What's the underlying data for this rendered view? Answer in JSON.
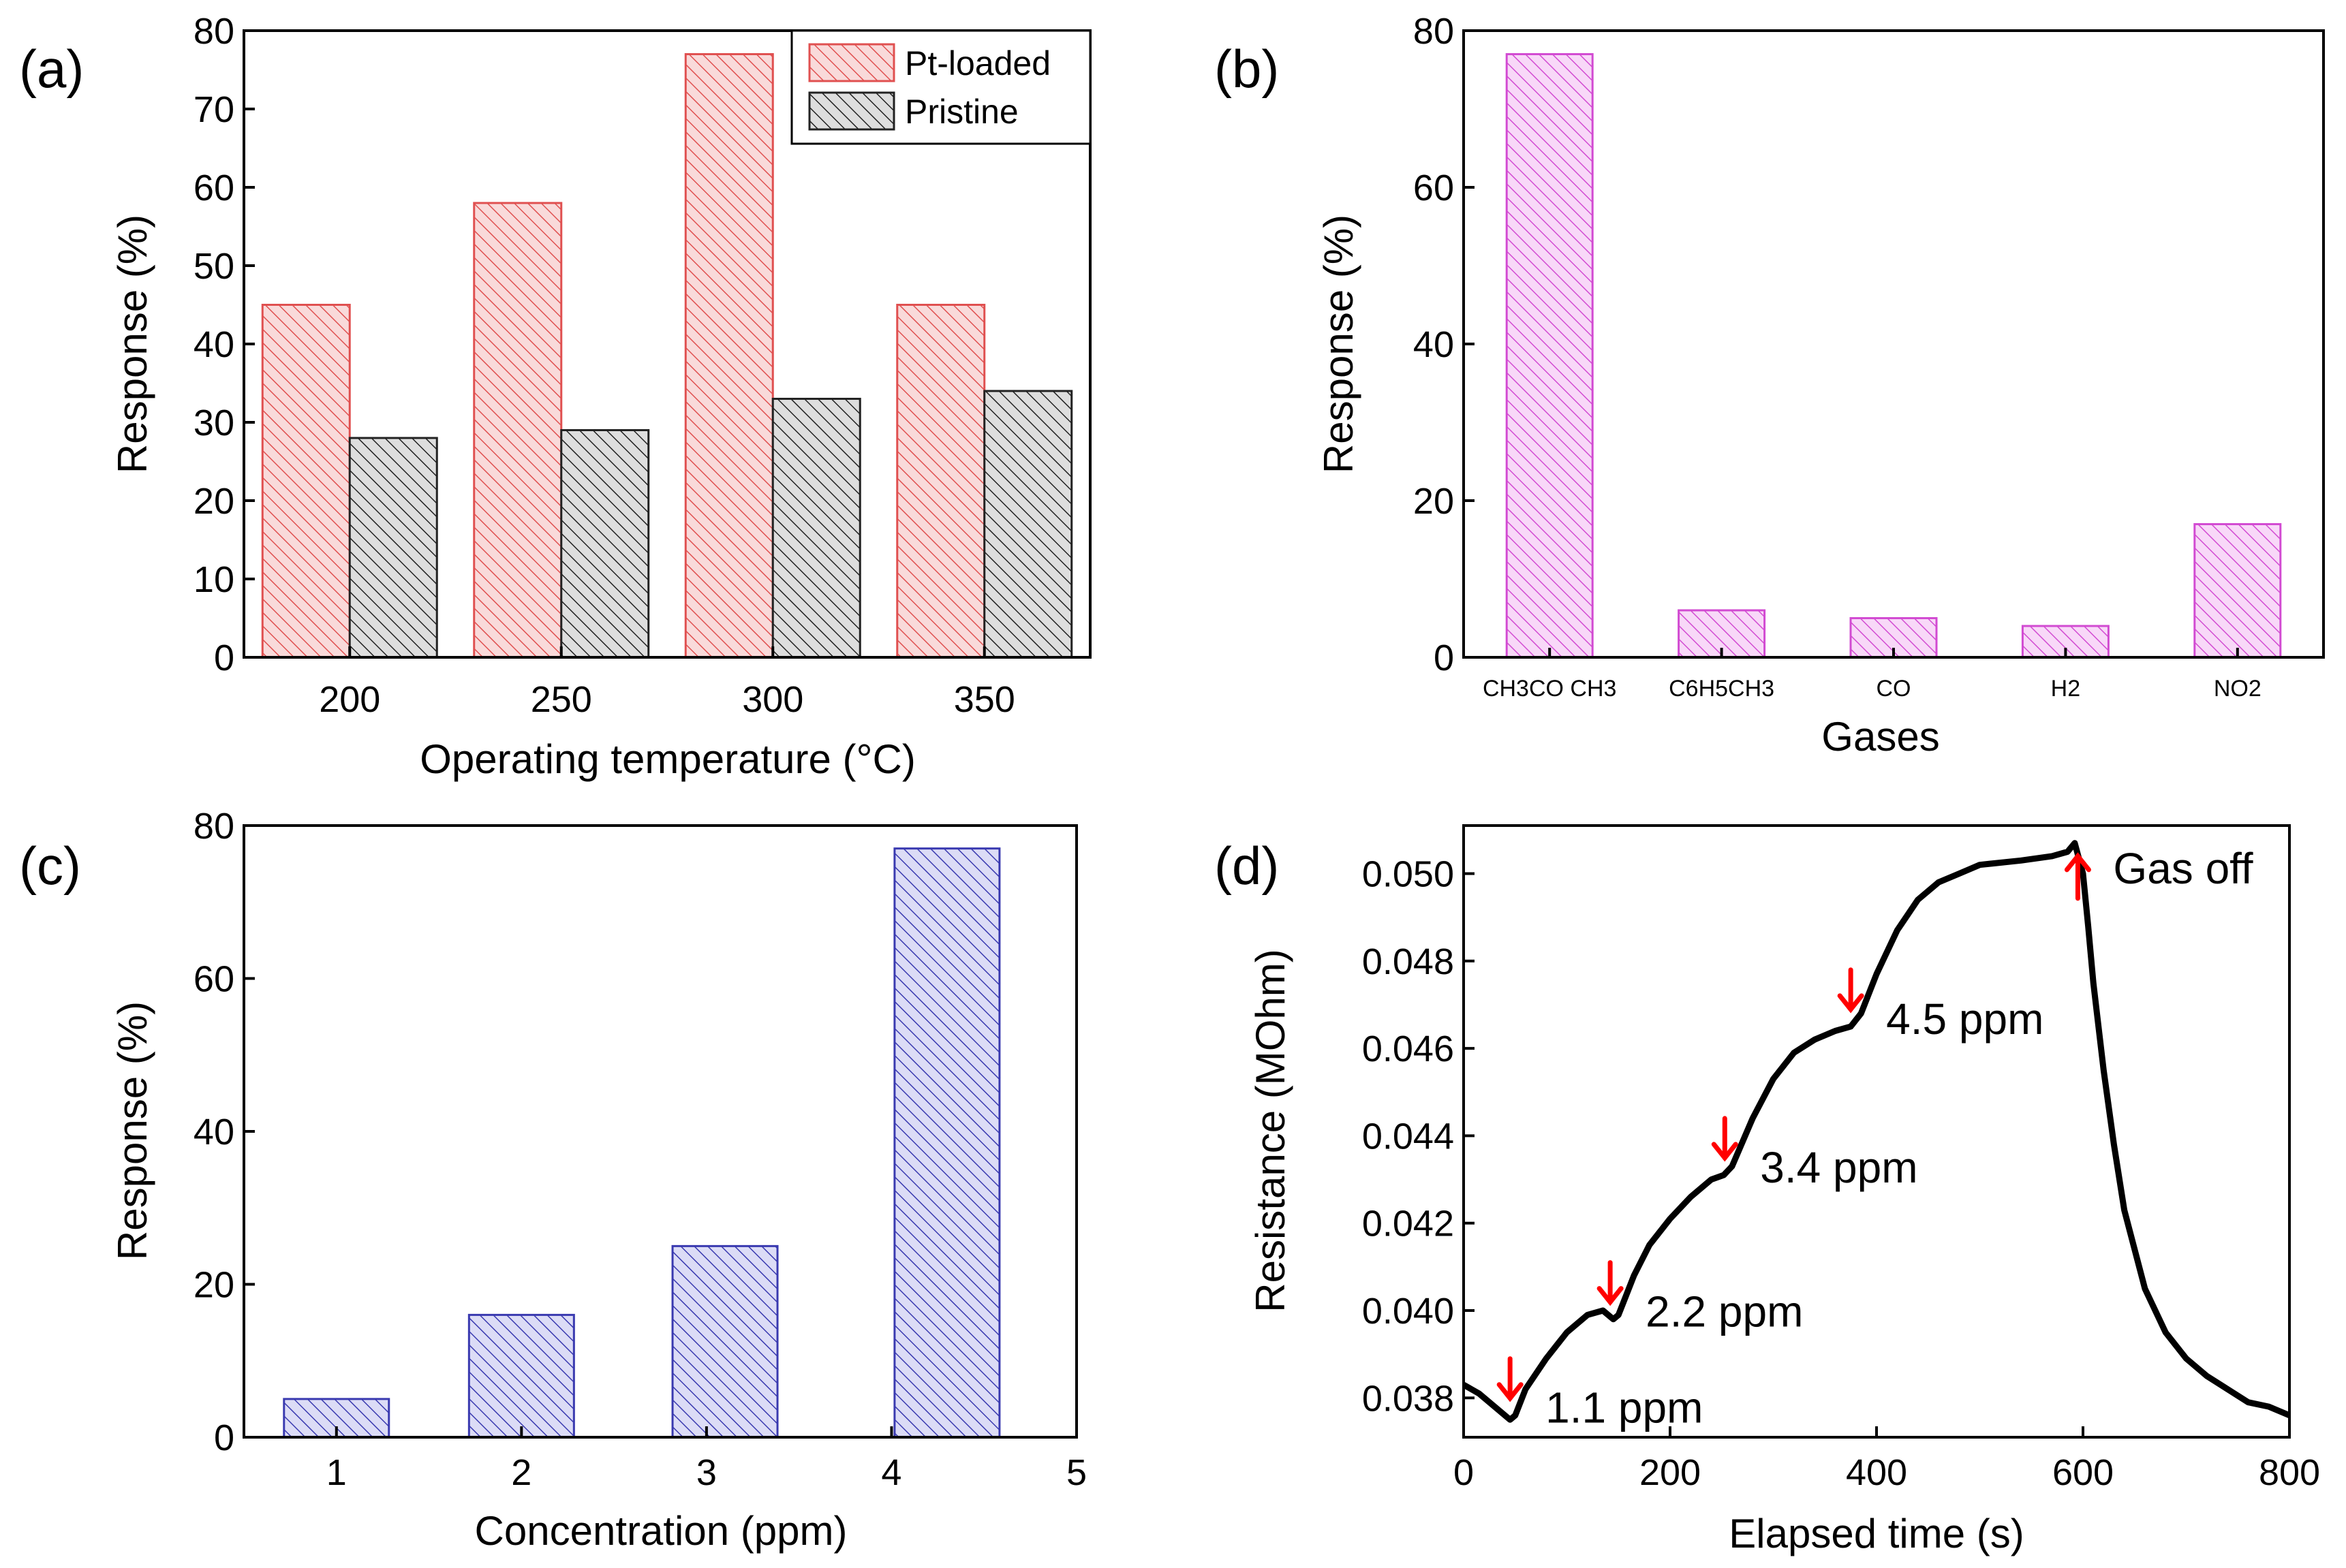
{
  "chart_data": [
    {
      "panel": "(a)",
      "type": "bar",
      "categories": [
        "200",
        "250",
        "300",
        "350"
      ],
      "series": [
        {
          "name": "Pt-loaded",
          "values": [
            45,
            58,
            77,
            45
          ],
          "color": "#e05050",
          "fill": "#f7c9c9"
        },
        {
          "name": "Pristine",
          "values": [
            28,
            29,
            33,
            34
          ],
          "color": "#222222",
          "fill": "#c8c8c8"
        }
      ],
      "xlabel": "Operating temperature (°C)",
      "ylabel": "Response (%)",
      "ylim": [
        0,
        80
      ],
      "yticks": [
        "0",
        "10",
        "20",
        "30",
        "40",
        "50",
        "60",
        "70",
        "80"
      ],
      "legend": "top-right",
      "grid": false
    },
    {
      "panel": "(b)",
      "type": "bar",
      "categories": [
        "CH3CO CH3",
        "C6H5CH3",
        "CO",
        "H2",
        "NO2"
      ],
      "values": [
        77,
        6,
        5,
        4,
        17
      ],
      "color": "#d24bd2",
      "fill": "#f5c6f5",
      "xlabel": "Gases",
      "ylabel": "Response (%)",
      "ylim": [
        0,
        80
      ],
      "yticks": [
        "0",
        "20",
        "40",
        "60",
        "80"
      ],
      "grid": false
    },
    {
      "panel": "(c)",
      "type": "bar",
      "x": [
        1,
        2,
        3.1,
        4.3
      ],
      "values": [
        5,
        16,
        25,
        77
      ],
      "color": "#3a3ab0",
      "fill": "#c7c7ef",
      "xlabel": "Concentration (ppm)",
      "ylabel": "Response (%)",
      "xlim": [
        0.5,
        5
      ],
      "xticks": [
        "1",
        "2",
        "3",
        "4",
        "5"
      ],
      "ylim": [
        0,
        80
      ],
      "yticks": [
        "0",
        "20",
        "40",
        "60",
        "80"
      ],
      "grid": false
    },
    {
      "panel": "(d)",
      "type": "line",
      "xlabel": "Elapsed time (s)",
      "ylabel": "Resistance (MOhm)",
      "xlim": [
        0,
        800
      ],
      "xticks": [
        "0",
        "200",
        "400",
        "600",
        "800"
      ],
      "ylim": [
        0.0371,
        0.0511
      ],
      "yticks": [
        "0.038",
        "0.040",
        "0.042",
        "0.044",
        "0.046",
        "0.048",
        "0.050"
      ],
      "series": [
        {
          "x": [
            0,
            15,
            30,
            45,
            50,
            60,
            80,
            100,
            120,
            135,
            145,
            150,
            165,
            180,
            200,
            220,
            240,
            252,
            260,
            280,
            300,
            320,
            340,
            360,
            375,
            385,
            400,
            420,
            440,
            460,
            480,
            500,
            540,
            570,
            585,
            592,
            600,
            605,
            610,
            620,
            630,
            640,
            660,
            680,
            700,
            720,
            740,
            760,
            780,
            800
          ],
          "y": [
            0.0383,
            0.0381,
            0.0378,
            0.0375,
            0.0376,
            0.0382,
            0.0389,
            0.0395,
            0.0399,
            0.04,
            0.0398,
            0.0399,
            0.0408,
            0.0415,
            0.0421,
            0.0426,
            0.043,
            0.0431,
            0.0433,
            0.0444,
            0.0453,
            0.0459,
            0.0462,
            0.0464,
            0.0465,
            0.0468,
            0.0477,
            0.0487,
            0.0494,
            0.0498,
            0.05,
            0.0502,
            0.0503,
            0.0504,
            0.0505,
            0.0507,
            0.05,
            0.0488,
            0.0475,
            0.0455,
            0.0438,
            0.0423,
            0.0405,
            0.0395,
            0.0389,
            0.0385,
            0.0382,
            0.0379,
            0.0378,
            0.0376
          ],
          "color": "#000000"
        }
      ],
      "annotations": [
        {
          "text": "1.1 ppm",
          "x": 45,
          "y": 0.03765,
          "arrow": "down"
        },
        {
          "text": "2.2 ppm",
          "x": 142,
          "y": 0.03985,
          "arrow": "down"
        },
        {
          "text": "3.4 ppm",
          "x": 253,
          "y": 0.04315,
          "arrow": "down"
        },
        {
          "text": "4.5 ppm",
          "x": 375,
          "y": 0.04655,
          "arrow": "down"
        },
        {
          "text": "Gas off",
          "x": 595,
          "y": 0.05065,
          "arrow": "up"
        }
      ],
      "arrow_color": "#ff0000",
      "grid": false
    }
  ]
}
